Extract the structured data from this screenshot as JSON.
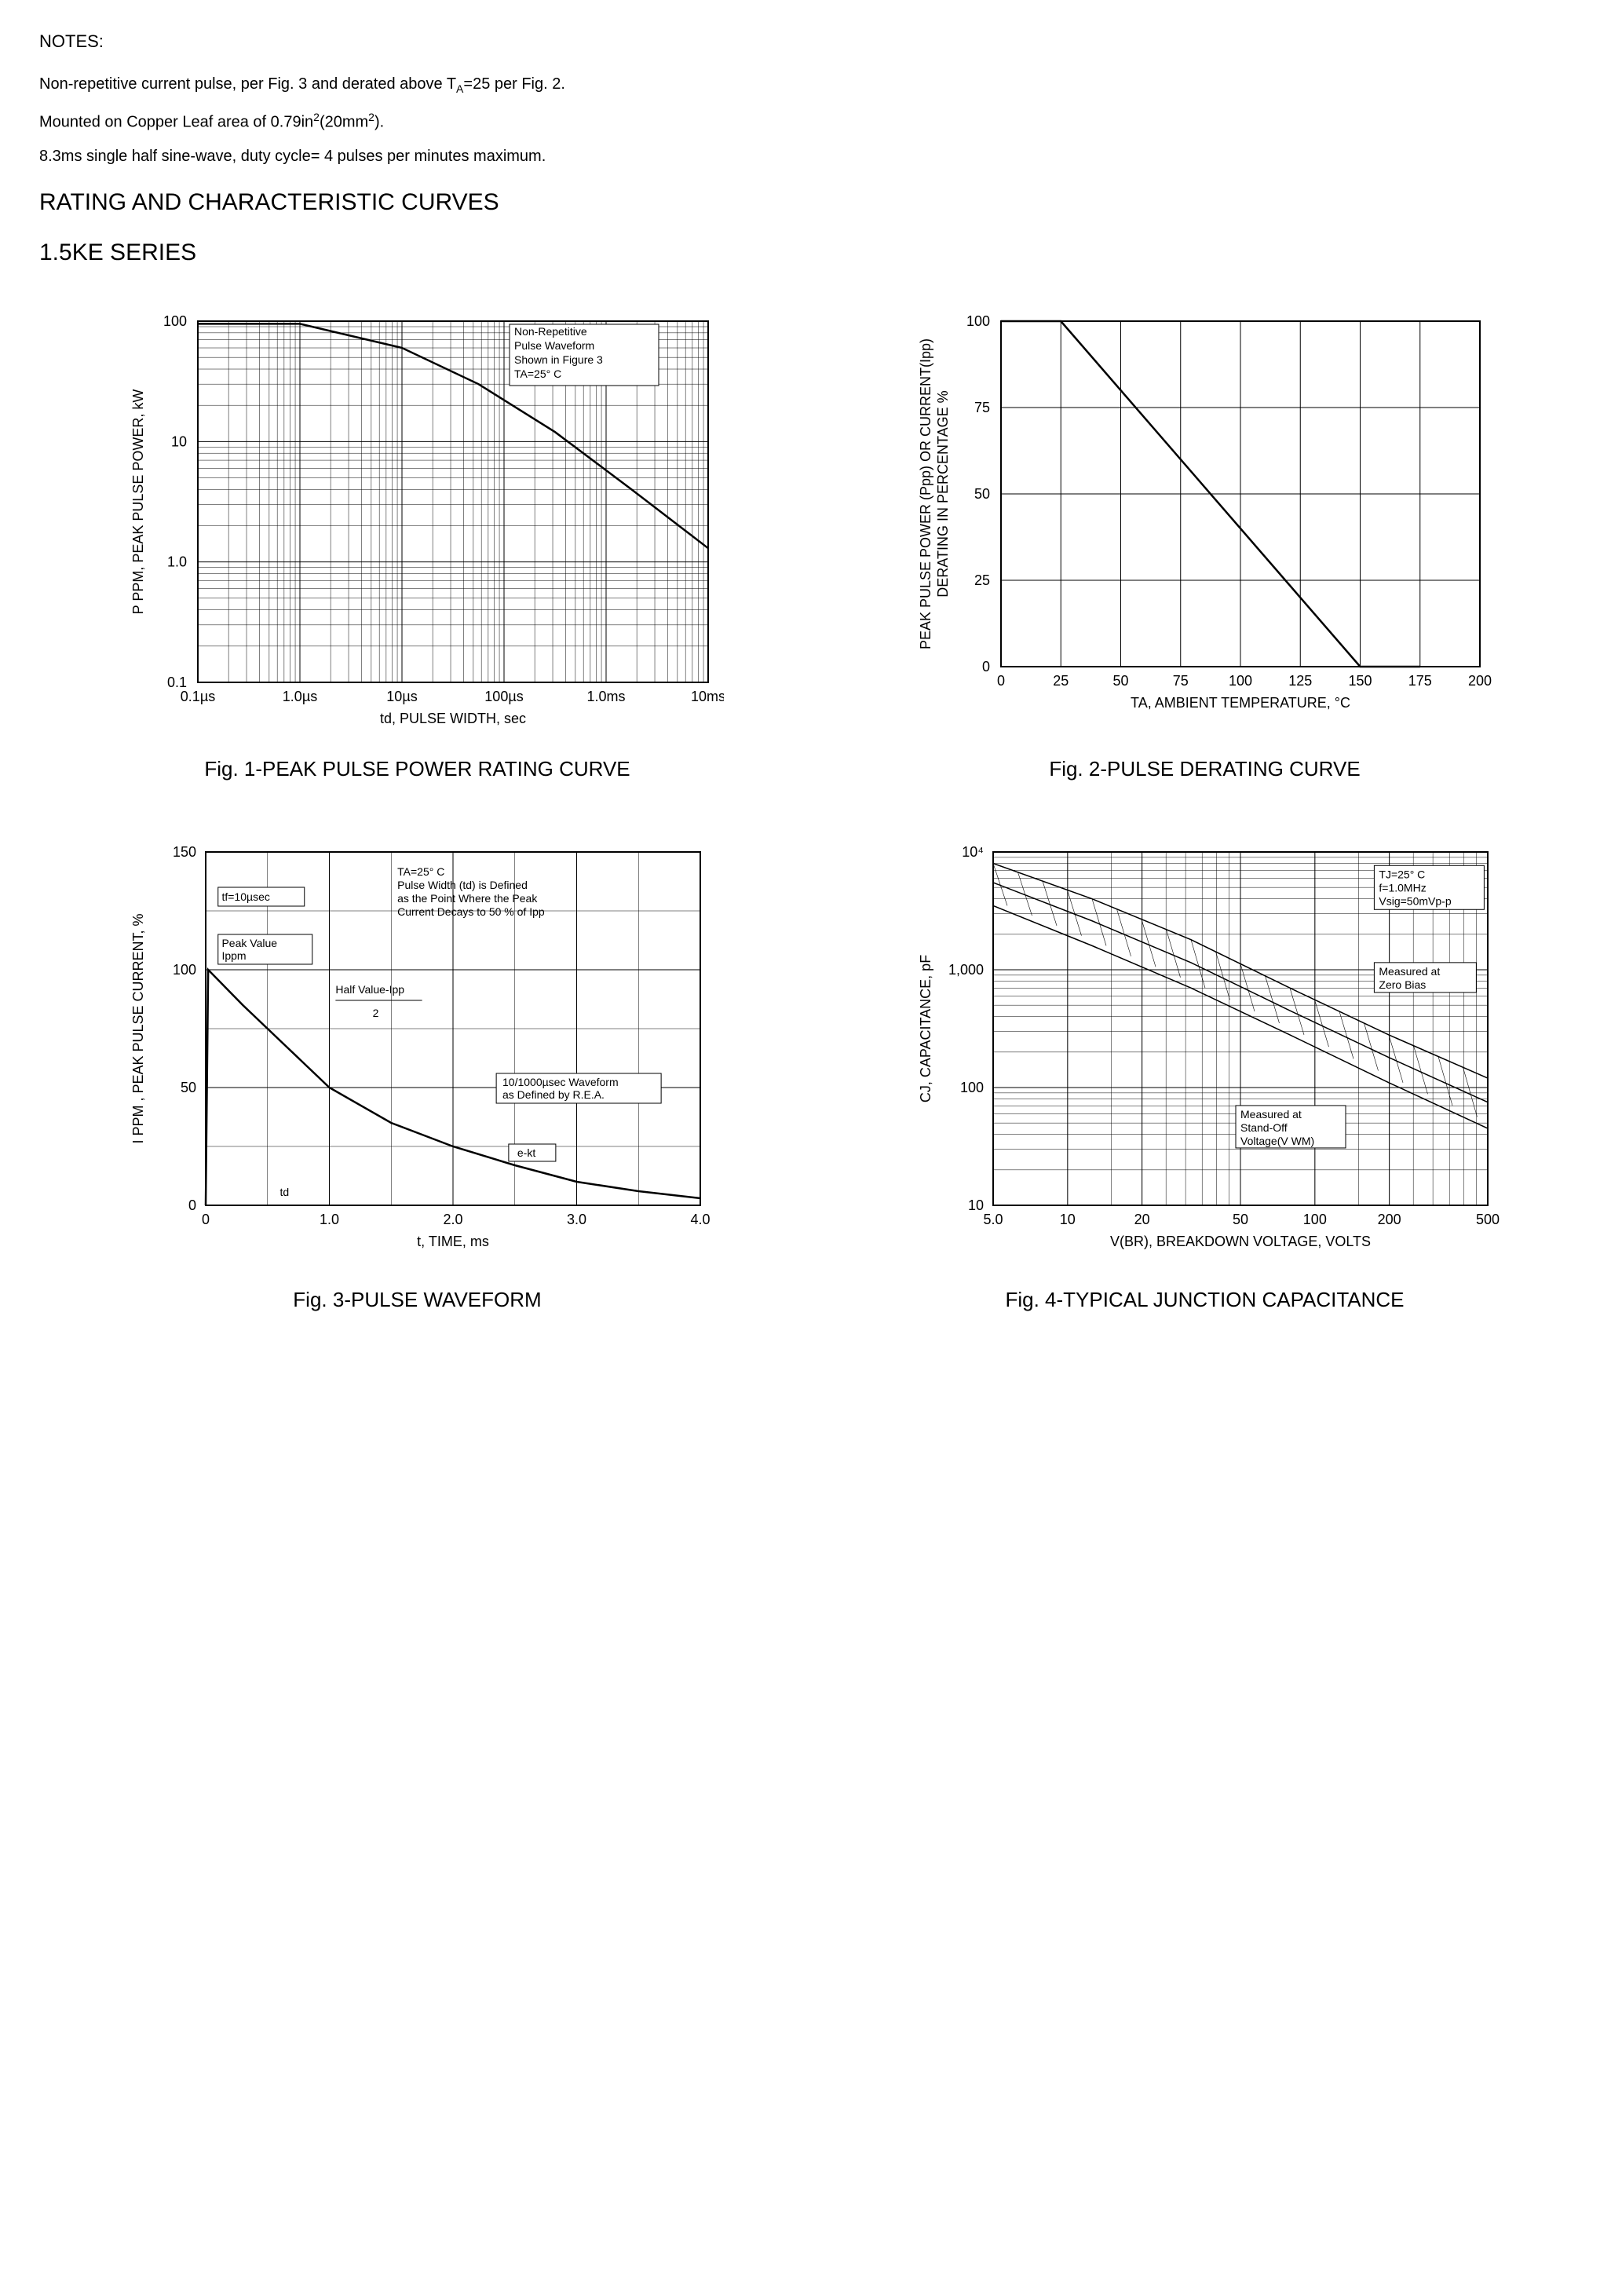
{
  "notes": {
    "heading": "NOTES:",
    "line1_a": "Non-repetitive current pulse, per Fig. 3 and derated above T",
    "line1_sub": "A",
    "line1_b": "=25  per Fig. 2.",
    "line2_a": "Mounted on Copper Leaf area of 0.79in",
    "line2_sup1": "2",
    "line2_b": "(20mm",
    "line2_sup2": "2",
    "line2_c": ").",
    "line3": "8.3ms single half sine-wave, duty cycle= 4 pulses per minutes maximum."
  },
  "section": {
    "title1": "RATING AND CHARACTERISTIC CURVES",
    "title2": "1.5KE SERIES"
  },
  "fig1": {
    "caption": "Fig. 1-PEAK PULSE POWER RATING CURVE",
    "ylabel": "P PPM, PEAK PULSE POWER, kW",
    "xlabel": "td, PULSE WIDTH, sec",
    "xticks": [
      "0.1µs",
      "1.0µs",
      "10µs",
      "100µs",
      "1.0ms",
      "10ms"
    ],
    "yticks": [
      "0.1",
      "1.0",
      "10",
      "100"
    ],
    "anno": [
      "Non-Repetitive",
      "Pulse Waveform",
      "Shown in Figure 3",
      "TA=25° C"
    ],
    "series": [
      {
        "x": 0,
        "y": 95
      },
      {
        "x": 0.2,
        "y": 95
      },
      {
        "x": 0.4,
        "y": 60
      },
      {
        "x": 0.55,
        "y": 30
      },
      {
        "x": 0.7,
        "y": 12
      },
      {
        "x": 0.85,
        "y": 4
      },
      {
        "x": 1.0,
        "y": 1.3
      }
    ],
    "background_color": "#ffffff",
    "grid_color": "#000000",
    "line_color": "#000000",
    "xlim": [
      0,
      1
    ],
    "ylim": [
      0.1,
      100
    ],
    "scale": "log-log"
  },
  "fig2": {
    "caption": "Fig. 2-PULSE DERATING CURVE",
    "ylabel": "PEAK PULSE POWER (Ppp) OR CURRENT(Ipp)\nDERATING IN PERCENTAGE %",
    "xlabel": "TA, AMBIENT  TEMPERATURE, °C",
    "xticks": [
      "0",
      "25",
      "50",
      "75",
      "100",
      "125",
      "150",
      "175",
      "200"
    ],
    "yticks": [
      "0",
      "25",
      "50",
      "75",
      "100"
    ],
    "series": [
      {
        "x": 0,
        "y": 100
      },
      {
        "x": 25,
        "y": 100
      },
      {
        "x": 150,
        "y": 0
      },
      {
        "x": 175,
        "y": 0
      }
    ],
    "background_color": "#ffffff",
    "grid_color": "#000000",
    "line_color": "#000000",
    "xlim": [
      0,
      200
    ],
    "ylim": [
      0,
      100
    ],
    "scale": "linear"
  },
  "fig3": {
    "caption": "Fig. 3-PULSE WAVEFORM",
    "ylabel": "I PPM , PEAK PULSE CURRENT, %",
    "xlabel": "t, TIME, ms",
    "xticks": [
      "0",
      "1.0",
      "2.0",
      "3.0",
      "4.0"
    ],
    "yticks": [
      "0",
      "50",
      "100",
      "150"
    ],
    "anno_left1": "tf=10µsec",
    "anno_left2a": "Peak Value",
    "anno_left2b": "Ippm",
    "anno_half": "Half Value-Ipp\n2",
    "anno_right1": "TA=25° C",
    "anno_right2": "Pulse Width (td) is Defined",
    "anno_right3": "as the Point Where the Peak",
    "anno_right4": "Current Decays to 50 % of Ipp",
    "anno_wave1": "10/1000µsec Waveform",
    "anno_wave2": "as Defined by R.E.A.",
    "anno_ekt": "e-kt",
    "anno_td": "td",
    "series": [
      {
        "x": 0,
        "y": 0
      },
      {
        "x": 0.02,
        "y": 100
      },
      {
        "x": 0.3,
        "y": 85
      },
      {
        "x": 0.6,
        "y": 70
      },
      {
        "x": 1.0,
        "y": 50
      },
      {
        "x": 1.5,
        "y": 35
      },
      {
        "x": 2.0,
        "y": 25
      },
      {
        "x": 2.5,
        "y": 17
      },
      {
        "x": 3.0,
        "y": 10
      },
      {
        "x": 3.5,
        "y": 6
      },
      {
        "x": 4.0,
        "y": 3
      }
    ],
    "background_color": "#ffffff",
    "grid_color": "#000000",
    "line_color": "#000000",
    "xlim": [
      0,
      4
    ],
    "ylim": [
      0,
      150
    ],
    "scale": "linear"
  },
  "fig4": {
    "caption": "Fig. 4-TYPICAL JUNCTION CAPACITANCE",
    "ylabel": "CJ, CAPACITANCE, pF",
    "xlabel": "V(BR), BREAKDOWN  VOLTAGE, VOLTS",
    "xticks": [
      "5.0",
      "10",
      "20",
      "50",
      "100",
      "200",
      "500"
    ],
    "yticks": [
      "10",
      "100",
      "1,000",
      "10⁴"
    ],
    "anno_cond1": "TJ=25° C",
    "anno_cond2": "f=1.0MHz",
    "anno_cond3": "Vsig=50mVp-p",
    "anno_zero1": "Measured at",
    "anno_zero2": "Zero Bias",
    "anno_so1": "Measured at",
    "anno_so2": "Stand-Off",
    "anno_so3": "Voltage(V WM)",
    "series_band_top": [
      {
        "x": 0,
        "y": 8000
      },
      {
        "x": 0.2,
        "y": 4000
      },
      {
        "x": 0.4,
        "y": 1800
      },
      {
        "x": 0.6,
        "y": 700
      },
      {
        "x": 0.8,
        "y": 280
      },
      {
        "x": 1.0,
        "y": 120
      }
    ],
    "series_band_bot": [
      {
        "x": 0,
        "y": 3500
      },
      {
        "x": 0.2,
        "y": 1600
      },
      {
        "x": 0.4,
        "y": 700
      },
      {
        "x": 0.6,
        "y": 280
      },
      {
        "x": 0.8,
        "y": 110
      },
      {
        "x": 1.0,
        "y": 45
      }
    ],
    "series_mid": [
      {
        "x": 0,
        "y": 5500
      },
      {
        "x": 0.2,
        "y": 2600
      },
      {
        "x": 0.4,
        "y": 1150
      },
      {
        "x": 0.6,
        "y": 450
      },
      {
        "x": 0.8,
        "y": 180
      },
      {
        "x": 1.0,
        "y": 75
      }
    ],
    "background_color": "#ffffff",
    "grid_color": "#000000",
    "line_color": "#000000",
    "xlim": [
      5,
      500
    ],
    "ylim": [
      10,
      10000
    ],
    "scale": "log-log"
  }
}
